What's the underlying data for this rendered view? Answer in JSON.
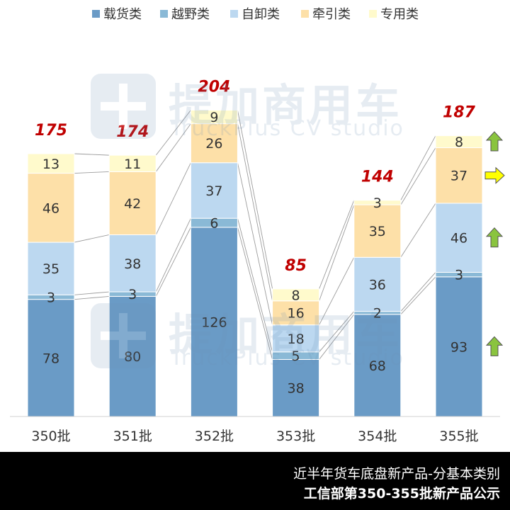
{
  "chart_data": {
    "type": "bar",
    "stacked": true,
    "categories": [
      "350批",
      "351批",
      "352批",
      "353批",
      "354批",
      "355批"
    ],
    "series": [
      {
        "name": "载货类",
        "color": "#6a9bc6",
        "values": [
          78,
          80,
          126,
          38,
          68,
          93
        ]
      },
      {
        "name": "越野类",
        "color": "#8ab9d6",
        "values": [
          3,
          3,
          6,
          5,
          2,
          3
        ]
      },
      {
        "name": "自卸类",
        "color": "#bcd8f0",
        "values": [
          35,
          38,
          37,
          18,
          36,
          46
        ]
      },
      {
        "name": "牵引类",
        "color": "#fde0a8",
        "values": [
          46,
          42,
          26,
          16,
          35,
          37
        ]
      },
      {
        "name": "专用类",
        "color": "#fffacc",
        "values": [
          13,
          11,
          9,
          8,
          3,
          8
        ]
      }
    ],
    "totals": [
      175,
      174,
      204,
      85,
      144,
      187
    ],
    "total_color": "#c00000",
    "legend_position": "top",
    "trend_arrows": [
      {
        "series": "载货类",
        "direction": "up",
        "color": "#8ac43f"
      },
      {
        "series": "自卸类",
        "direction": "up",
        "color": "#8ac43f"
      },
      {
        "series": "牵引类",
        "direction": "right",
        "color": "#ffff00"
      },
      {
        "series": "专用类",
        "direction": "up",
        "color": "#8ac43f"
      }
    ],
    "ylim": [
      0,
      210
    ]
  },
  "watermark": {
    "cn": "提加商用车",
    "en": "TruckPlus CV studio"
  },
  "footer": {
    "line1": "近半年货车底盘新产品-分基本类别",
    "line2": "工信部第350-355批新产品公示"
  }
}
